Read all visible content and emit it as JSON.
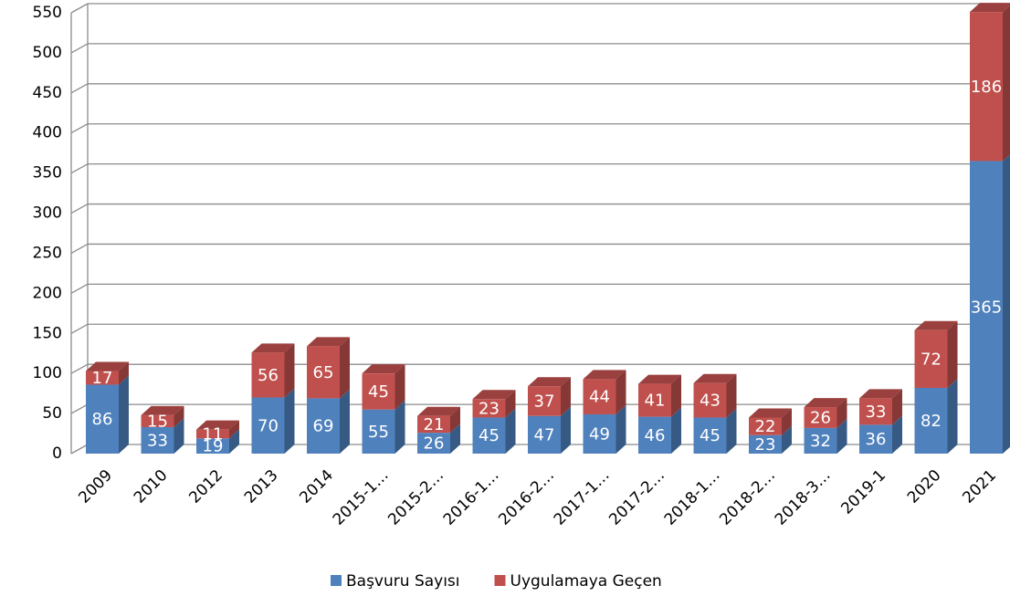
{
  "chart_data": {
    "type": "bar",
    "stacked": true,
    "three_d": true,
    "categories": [
      "2009",
      "2010",
      "2012",
      "2013",
      "2014",
      "2015-1…",
      "2015-2…",
      "2016-1…",
      "2016-2…",
      "2017-1…",
      "2017-2…",
      "2018-1…",
      "2018-2…",
      "2018-3…",
      "2019-1",
      "2020",
      "2021"
    ],
    "series": [
      {
        "name": "Başvuru Sayısı",
        "color": "#4f81bd",
        "values": [
          86,
          33,
          19,
          70,
          69,
          55,
          26,
          45,
          47,
          49,
          46,
          45,
          23,
          32,
          36,
          82,
          365
        ]
      },
      {
        "name": "Uygulamaya Geçen",
        "color": "#c0504d",
        "values": [
          17,
          15,
          11,
          56,
          65,
          45,
          21,
          23,
          37,
          44,
          41,
          43,
          22,
          26,
          33,
          72,
          186
        ]
      }
    ],
    "ylim": [
      0,
      550
    ],
    "yticks": [
      0,
      50,
      100,
      150,
      200,
      250,
      300,
      350,
      400,
      450,
      500,
      550
    ],
    "grid": true,
    "legend": "bottom"
  }
}
